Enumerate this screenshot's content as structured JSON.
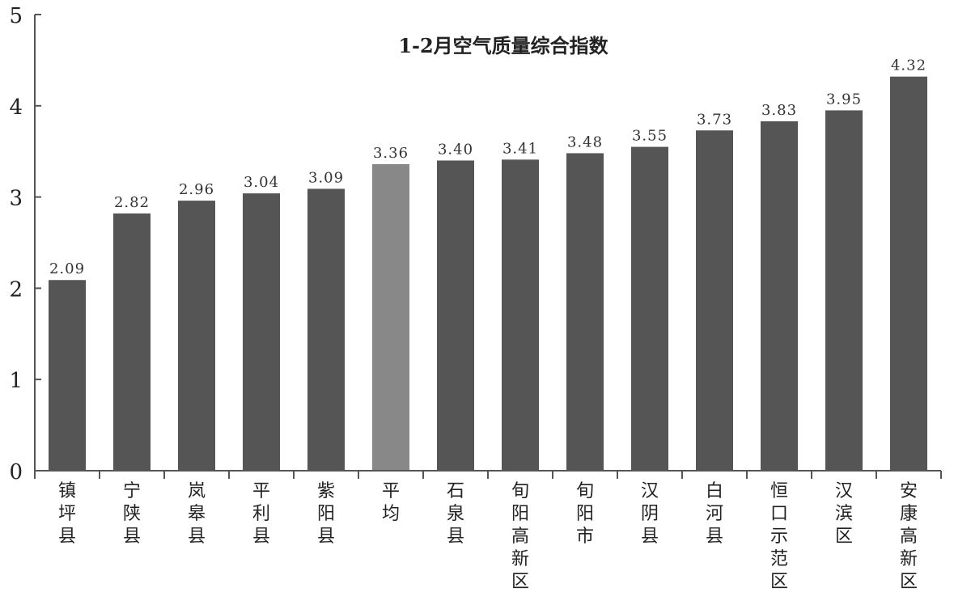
{
  "chart_data": {
    "type": "bar",
    "title": "1-2月空气质量综合指数",
    "categories": [
      "镇坪县",
      "宁陕县",
      "岚皋县",
      "平利县",
      "紫阳县",
      "平均",
      "石泉县",
      "旬阳高新区",
      "旬阳市",
      "汉阴县",
      "白河县",
      "恒口示范区",
      "汉滨区",
      "安康高新区"
    ],
    "values": [
      2.09,
      2.82,
      2.96,
      3.04,
      3.09,
      3.36,
      3.4,
      3.41,
      3.48,
      3.55,
      3.73,
      3.83,
      3.95,
      4.32
    ],
    "value_labels": [
      "2.09",
      "2.82",
      "2.96",
      "3.04",
      "3.09",
      "3.36",
      "3.40",
      "3.41",
      "3.48",
      "3.55",
      "3.73",
      "3.83",
      "3.95",
      "4.32"
    ],
    "ylim": [
      0,
      5
    ],
    "yticks": [
      "0",
      "1",
      "2",
      "3",
      "4",
      "5"
    ],
    "xlabel": "",
    "ylabel": "",
    "grid": false,
    "colors": {
      "bar": "#555555",
      "highlight": "#888888"
    },
    "highlight_category": "平均"
  }
}
